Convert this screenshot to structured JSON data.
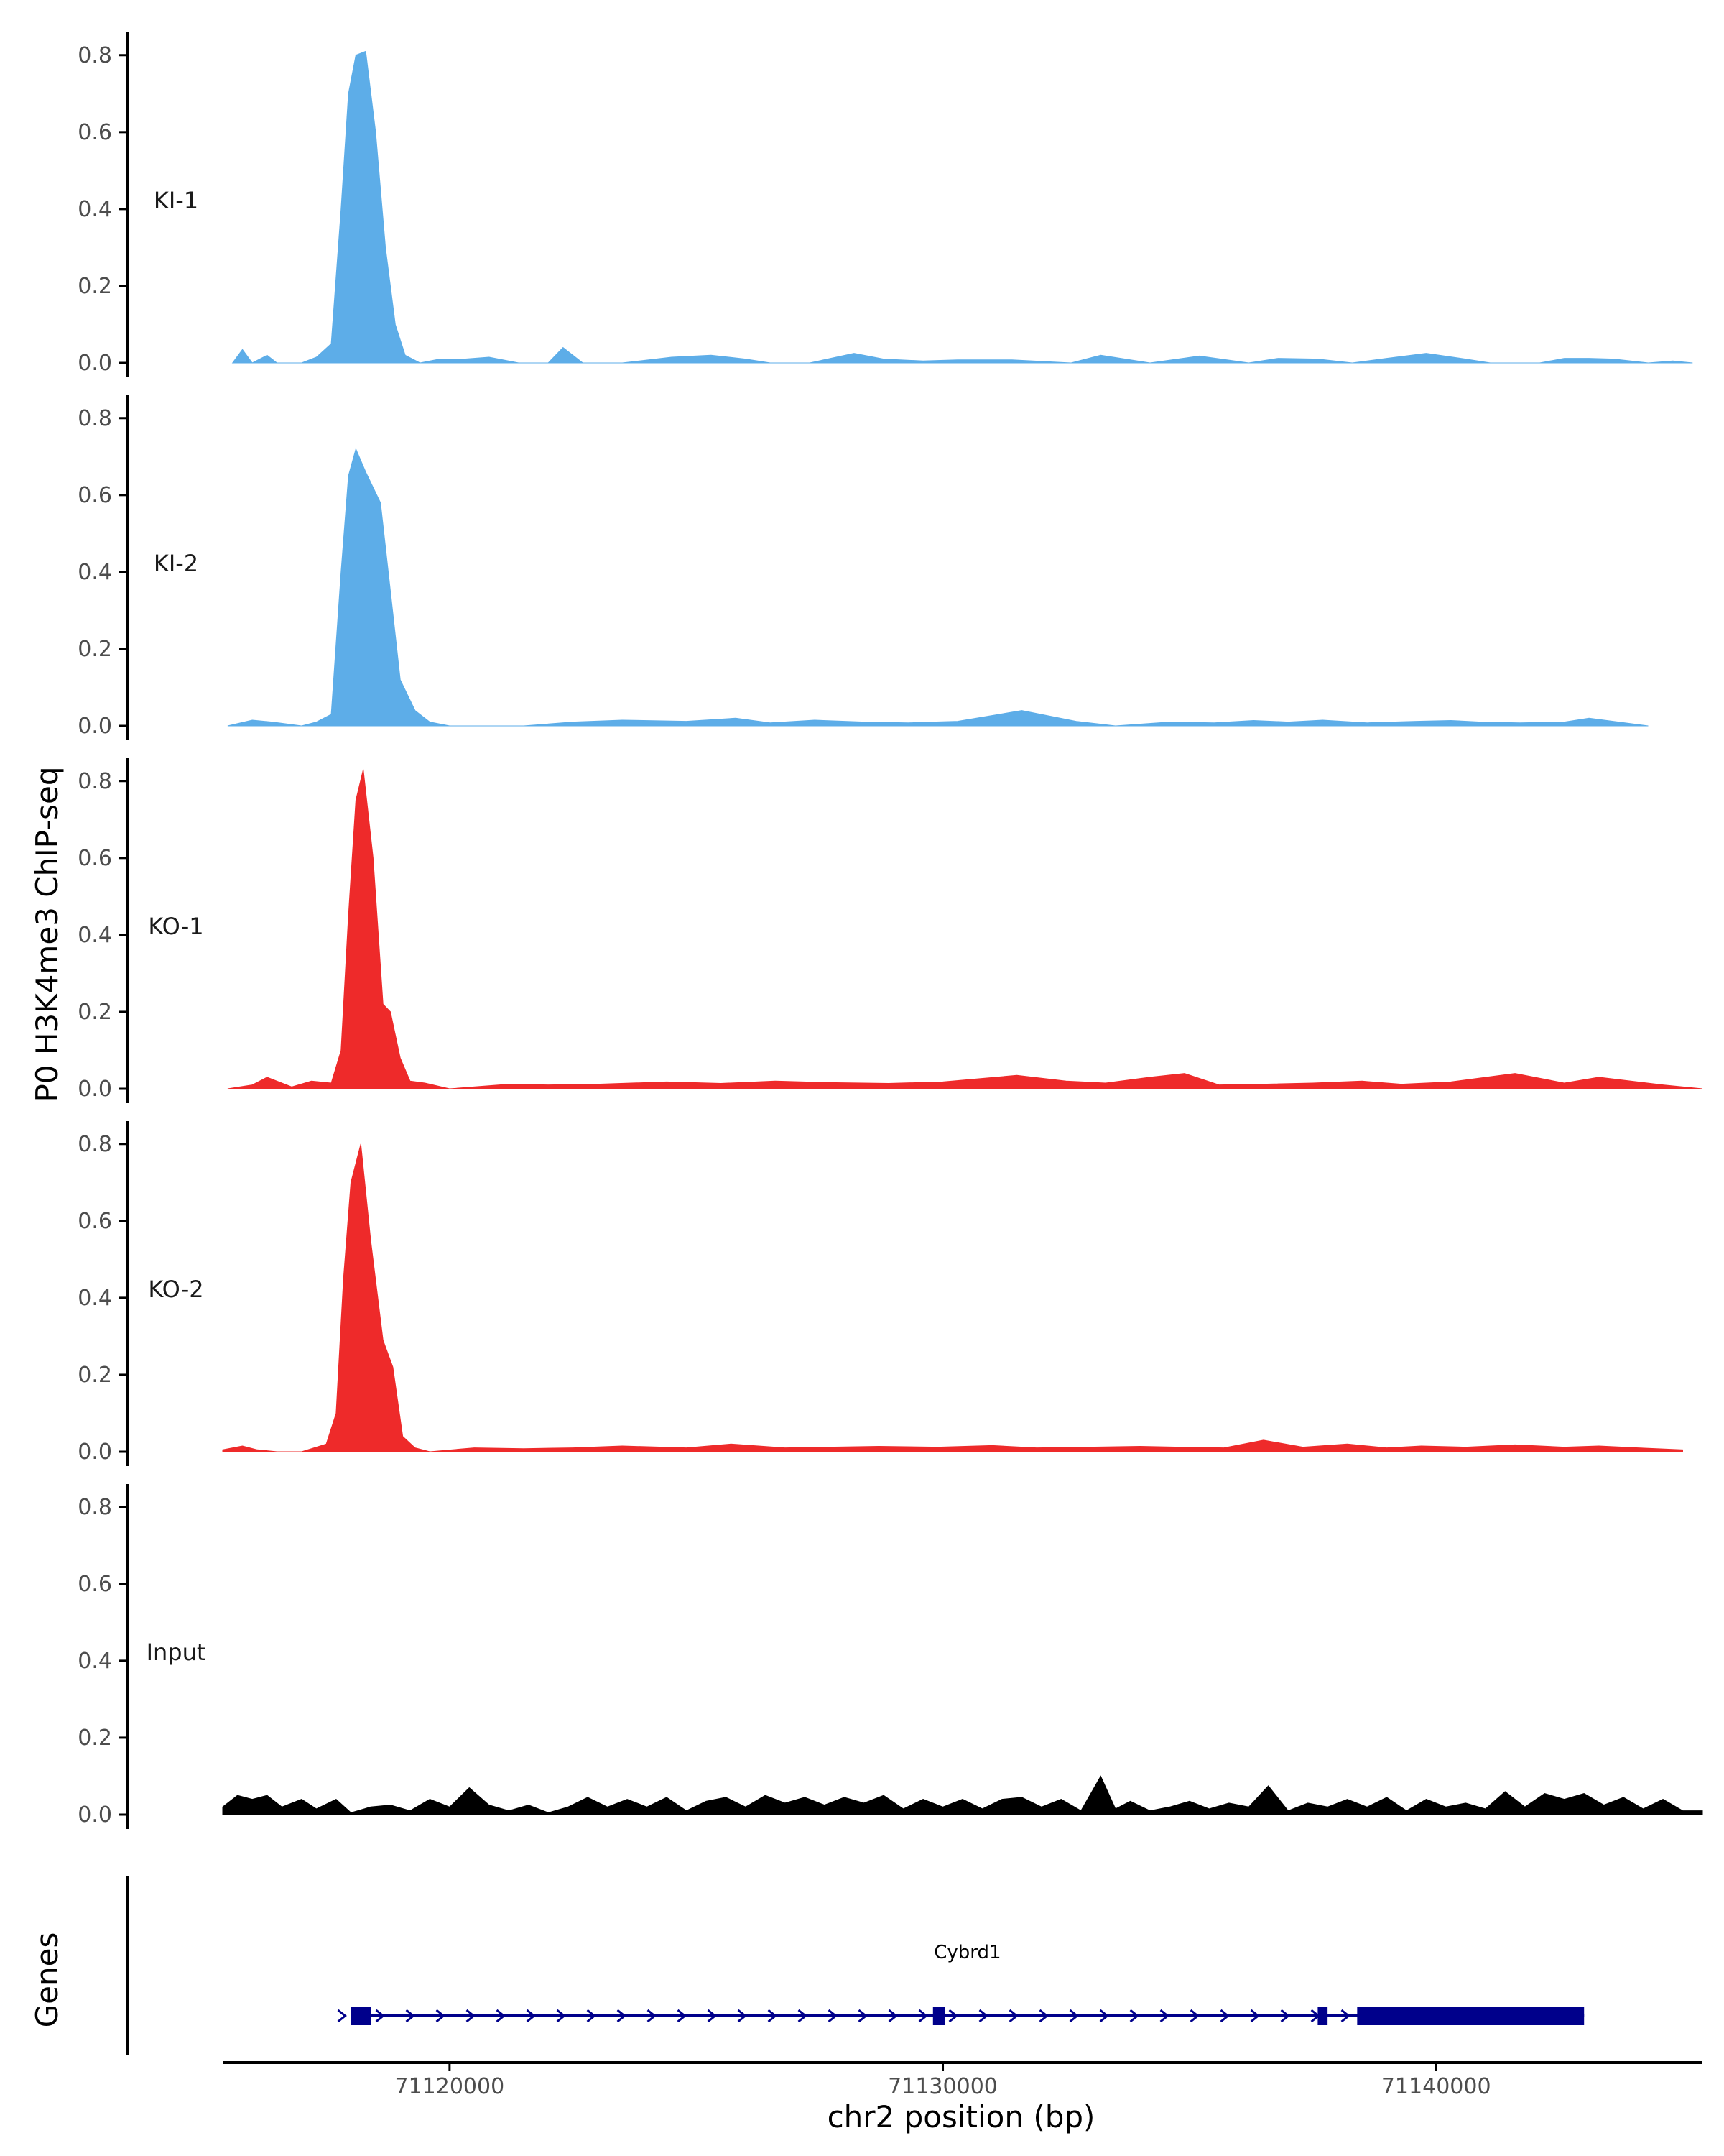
{
  "chart_data": {
    "type": "area",
    "ylabel": "P0 H3K4me3 ChIP-seq",
    "xlabel": "chr2 position (bp)",
    "xlim": [
      71115400,
      71145400
    ],
    "ylim": [
      0,
      0.85
    ],
    "y_ticks": [
      "0.0",
      "0.2",
      "0.4",
      "0.6",
      "0.8"
    ],
    "x_ticks": [
      {
        "value": 71120000,
        "label": "71120000"
      },
      {
        "value": 71130000,
        "label": "71130000"
      },
      {
        "value": 71140000,
        "label": "71140000"
      }
    ],
    "grid": false,
    "tracks": [
      {
        "name": "KI-1",
        "color": "#5dade8",
        "x": [
          71115600,
          71115800,
          71116000,
          71116300,
          71116500,
          71117000,
          71117300,
          71117600,
          71117800,
          71117950,
          71118100,
          71118300,
          71118500,
          71118700,
          71118900,
          71119100,
          71119400,
          71119800,
          71120300,
          71120800,
          71121400,
          71122000,
          71122300,
          71122700,
          71123500,
          71124500,
          71125300,
          71126000,
          71126500,
          71127300,
          71128200,
          71128800,
          71129600,
          71130300,
          71131400,
          71132600,
          71133200,
          71134200,
          71135200,
          71136200,
          71136800,
          71137600,
          71138300,
          71139000,
          71139800,
          71140600,
          71141100,
          71142100,
          71142600,
          71143100,
          71143600,
          71144300,
          71144800,
          71145200
        ],
        "values": [
          0,
          0.035,
          0,
          0.02,
          0,
          0,
          0.015,
          0.05,
          0.4,
          0.7,
          0.8,
          0.81,
          0.6,
          0.3,
          0.1,
          0.02,
          0,
          0.01,
          0.01,
          0.015,
          0,
          0,
          0.04,
          0,
          0,
          0.015,
          0.02,
          0.01,
          0,
          0,
          0.025,
          0.01,
          0.005,
          0.008,
          0.008,
          0,
          0.02,
          0,
          0.018,
          0,
          0.012,
          0.01,
          0,
          0.012,
          0.025,
          0.01,
          0,
          0,
          0.012,
          0.012,
          0.01,
          0,
          0.005,
          0
        ],
        "label_y": 0.42
      },
      {
        "name": "KI-2",
        "color": "#5dade8",
        "x": [
          71115500,
          71116000,
          71116400,
          71117000,
          71117300,
          71117600,
          71117800,
          71117950,
          71118100,
          71118300,
          71118600,
          71118800,
          71119000,
          71119300,
          71119600,
          71120000,
          71121500,
          71122500,
          71123500,
          71124800,
          71125800,
          71126500,
          71127400,
          71128400,
          71129300,
          71130300,
          71131600,
          71132700,
          71133500,
          71134600,
          71135500,
          71136300,
          71137000,
          71137700,
          71138600,
          71139600,
          71140300,
          71140900,
          71141700,
          71142600,
          71143100,
          71144300
        ],
        "values": [
          0,
          0.015,
          0.01,
          0,
          0.01,
          0.03,
          0.4,
          0.65,
          0.72,
          0.66,
          0.58,
          0.35,
          0.12,
          0.04,
          0.01,
          0,
          0,
          0.01,
          0.015,
          0.012,
          0.02,
          0.008,
          0.015,
          0.01,
          0.008,
          0.012,
          0.04,
          0.012,
          0,
          0.01,
          0.008,
          0.014,
          0.01,
          0.015,
          0.008,
          0.012,
          0.014,
          0.01,
          0.008,
          0.01,
          0.02,
          0
        ],
        "label_y": 0.42
      },
      {
        "name": "KO-1",
        "color": "#ee2a2a",
        "x": [
          71115500,
          71116000,
          71116300,
          71116800,
          71117200,
          71117600,
          71117800,
          71117950,
          71118100,
          71118250,
          71118450,
          71118650,
          71118800,
          71119000,
          71119200,
          71119500,
          71120000,
          71121200,
          71122000,
          71123000,
          71124400,
          71125500,
          71126600,
          71127700,
          71128900,
          71130000,
          71131500,
          71132500,
          71133300,
          71134200,
          71134900,
          71135600,
          71136500,
          71137500,
          71138500,
          71139300,
          71140300,
          71141600,
          71142600,
          71143300,
          71144600,
          71145400
        ],
        "values": [
          0,
          0.01,
          0.03,
          0.005,
          0.02,
          0.015,
          0.1,
          0.45,
          0.75,
          0.83,
          0.6,
          0.22,
          0.2,
          0.08,
          0.02,
          0.015,
          0,
          0.012,
          0.01,
          0.012,
          0.018,
          0.014,
          0.02,
          0.016,
          0.014,
          0.018,
          0.035,
          0.02,
          0.015,
          0.03,
          0.04,
          0.01,
          0.012,
          0.015,
          0.02,
          0.012,
          0.018,
          0.04,
          0.015,
          0.03,
          0.01,
          0
        ],
        "label_y": 0.42
      },
      {
        "name": "KO-2",
        "color": "#ee2a2a",
        "x": [
          71115400,
          71115800,
          71116100,
          71116500,
          71117000,
          71117500,
          71117700,
          71117850,
          71118000,
          71118200,
          71118400,
          71118650,
          71118850,
          71119050,
          71119300,
          71119600,
          71120500,
          71121500,
          71122500,
          71123500,
          71124800,
          71125700,
          71126800,
          71127700,
          71128700,
          71129900,
          71131000,
          71131900,
          71133000,
          71134000,
          71134800,
          71135700,
          71136500,
          71137300,
          71138200,
          71139000,
          71139700,
          71140600,
          71141600,
          71142600,
          71143300,
          71144100,
          71145000
        ],
        "values": [
          0.005,
          0.015,
          0.005,
          0,
          0,
          0.02,
          0.1,
          0.45,
          0.7,
          0.8,
          0.55,
          0.29,
          0.22,
          0.04,
          0.01,
          0,
          0.01,
          0.008,
          0.01,
          0.015,
          0.01,
          0.02,
          0.01,
          0.012,
          0.014,
          0.012,
          0.016,
          0.01,
          0.012,
          0.014,
          0.012,
          0.01,
          0.03,
          0.012,
          0.02,
          0.01,
          0.015,
          0.012,
          0.018,
          0.012,
          0.015,
          0.01,
          0.005
        ],
        "label_y": 0.42
      },
      {
        "name": "Input",
        "color": "#000000",
        "x": [
          71115400,
          71115700,
          71116000,
          71116300,
          71116600,
          71117000,
          71117300,
          71117700,
          71118000,
          71118400,
          71118800,
          71119200,
          71119600,
          71120000,
          71120400,
          71120800,
          71121200,
          71121600,
          71122000,
          71122400,
          71122800,
          71123200,
          71123600,
          71124000,
          71124400,
          71124800,
          71125200,
          71125600,
          71126000,
          71126400,
          71126800,
          71127200,
          71127600,
          71128000,
          71128400,
          71128800,
          71129200,
          71129600,
          71130000,
          71130400,
          71130800,
          71131200,
          71131600,
          71132000,
          71132400,
          71132800,
          71133200,
          71133500,
          71133800,
          71134200,
          71134600,
          71135000,
          71135400,
          71135800,
          71136200,
          71136600,
          71137000,
          71137400,
          71137800,
          71138200,
          71138600,
          71139000,
          71139400,
          71139800,
          71140200,
          71140600,
          71141000,
          71141400,
          71141800,
          71142200,
          71142600,
          71143000,
          71143400,
          71143800,
          71144200,
          71144600,
          71145000,
          71145400
        ],
        "values": [
          0.02,
          0.05,
          0.04,
          0.05,
          0.02,
          0.04,
          0.015,
          0.04,
          0.005,
          0.02,
          0.025,
          0.01,
          0.04,
          0.02,
          0.07,
          0.025,
          0.01,
          0.025,
          0.005,
          0.02,
          0.045,
          0.02,
          0.04,
          0.02,
          0.045,
          0.01,
          0.035,
          0.045,
          0.02,
          0.05,
          0.03,
          0.045,
          0.025,
          0.045,
          0.03,
          0.05,
          0.015,
          0.04,
          0.02,
          0.04,
          0.015,
          0.04,
          0.045,
          0.02,
          0.04,
          0.01,
          0.1,
          0.015,
          0.035,
          0.01,
          0.02,
          0.035,
          0.015,
          0.03,
          0.02,
          0.075,
          0.01,
          0.03,
          0.02,
          0.04,
          0.02,
          0.045,
          0.01,
          0.04,
          0.02,
          0.03,
          0.015,
          0.06,
          0.02,
          0.055,
          0.04,
          0.055,
          0.025,
          0.045,
          0.015,
          0.04,
          0.01,
          0.01
        ],
        "label_y": 0.42
      }
    ],
    "genes_track": {
      "title": "Genes",
      "gene_name": "Cybrd1",
      "color": "#00008b",
      "start": 71118000,
      "end": 71143000,
      "strand": "+",
      "exons": [
        {
          "start": 71118000,
          "end": 71118400,
          "thickness": "thick"
        },
        {
          "start": 71129800,
          "end": 71130050,
          "thickness": "thick"
        },
        {
          "start": 71137600,
          "end": 71137800,
          "thickness": "thick"
        },
        {
          "start": 71138400,
          "end": 71143000,
          "thickness": "thick"
        }
      ]
    }
  }
}
